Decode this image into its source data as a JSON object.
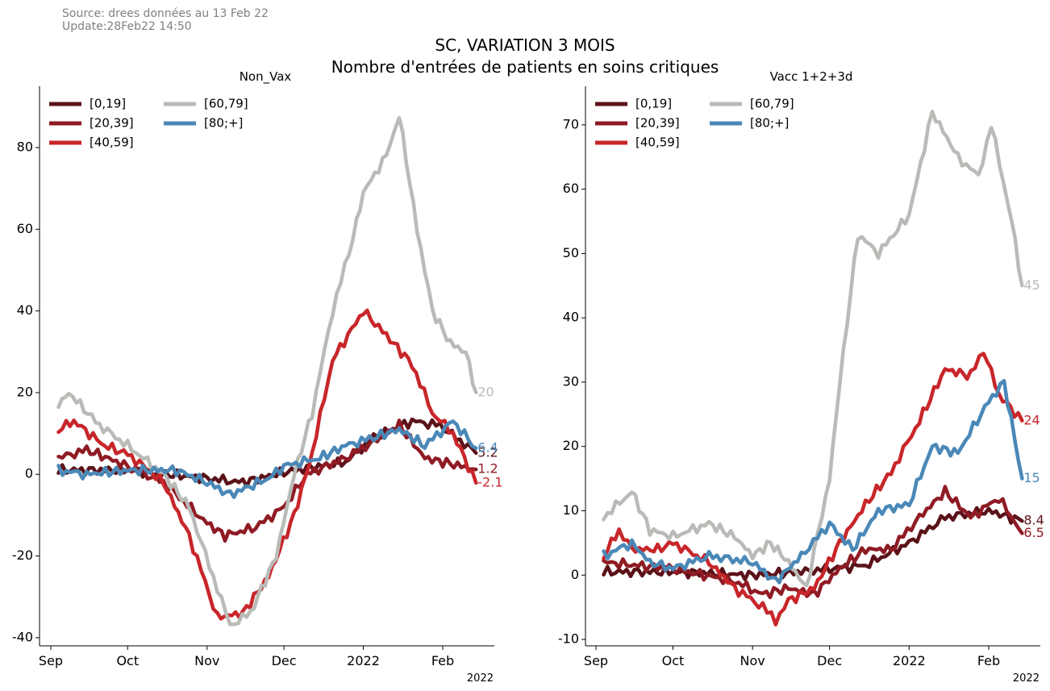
{
  "header": {
    "source": "Source: drees données au 13 Feb 22",
    "update": "Update:28Feb22 14:50",
    "title_line1": "SC, VARIATION 3 MOIS",
    "title_line2": "Nombre d'entrées de patients en soins critiques"
  },
  "colors": {
    "[0,19]": "#5b1219",
    "[20,39]": "#8f1b24",
    "[40,59]": "#c8262a",
    "[60,79]": "#b9bbb7",
    "[80;+]": "#4a88b7"
  },
  "chart_data": [
    {
      "type": "line",
      "title": "Non_Vax",
      "x_ticks": [
        "Sep",
        "Oct",
        "Nov",
        "Dec",
        "2022",
        "Feb"
      ],
      "x_offset_label": "2022",
      "ylim": [
        -42,
        95
      ],
      "y_ticks": [
        -40,
        -20,
        0,
        20,
        40,
        60,
        80
      ],
      "legend_loc": "upper-left",
      "legend_cols": 2,
      "series": [
        {
          "name": "[0,19]",
          "points": [
            [
              "2021-09-04",
              1
            ],
            [
              "2021-10-01",
              1
            ],
            [
              "2021-11-01",
              -1
            ],
            [
              "2021-11-15",
              -2
            ],
            [
              "2021-12-01",
              0.5
            ],
            [
              "2021-12-25",
              3
            ],
            [
              "2022-01-05",
              9
            ],
            [
              "2022-01-20",
              13
            ],
            [
              "2022-01-31",
              12
            ],
            [
              "2022-02-14",
              5.2
            ]
          ],
          "end_label": "5.2"
        },
        {
          "name": "[20,39]",
          "points": [
            [
              "2021-09-04",
              4
            ],
            [
              "2021-09-15",
              6
            ],
            [
              "2021-10-01",
              2
            ],
            [
              "2021-10-15",
              -2
            ],
            [
              "2021-11-01",
              -12
            ],
            [
              "2021-11-08",
              -15
            ],
            [
              "2021-11-20",
              -13
            ],
            [
              "2021-12-01",
              -8
            ],
            [
              "2021-12-10",
              0
            ],
            [
              "2021-12-25",
              4
            ],
            [
              "2022-01-05",
              8
            ],
            [
              "2022-01-15",
              12
            ],
            [
              "2022-01-25",
              4
            ],
            [
              "2022-02-01",
              3
            ],
            [
              "2022-02-14",
              1.2
            ]
          ],
          "end_label": "1.2"
        },
        {
          "name": "[40,59]",
          "points": [
            [
              "2021-09-04",
              11
            ],
            [
              "2021-09-10",
              13
            ],
            [
              "2021-09-22",
              7
            ],
            [
              "2021-10-01",
              5
            ],
            [
              "2021-10-15",
              -2
            ],
            [
              "2021-10-25",
              -15
            ],
            [
              "2021-11-05",
              -35
            ],
            [
              "2021-11-15",
              -34
            ],
            [
              "2021-11-25",
              -25
            ],
            [
              "2021-12-05",
              -10
            ],
            [
              "2021-12-12",
              5
            ],
            [
              "2021-12-20",
              28
            ],
            [
              "2022-01-01",
              40
            ],
            [
              "2022-01-10",
              34
            ],
            [
              "2022-01-20",
              27
            ],
            [
              "2022-01-28",
              15
            ],
            [
              "2022-02-05",
              10
            ],
            [
              "2022-02-14",
              -2.1
            ]
          ],
          "end_label": "-2.1"
        },
        {
          "name": "[60,79]",
          "points": [
            [
              "2021-09-04",
              17
            ],
            [
              "2021-09-08",
              20
            ],
            [
              "2021-09-20",
              12
            ],
            [
              "2021-10-01",
              7
            ],
            [
              "2021-10-15",
              0
            ],
            [
              "2021-10-25",
              -8
            ],
            [
              "2021-11-05",
              -28
            ],
            [
              "2021-11-10",
              -37
            ],
            [
              "2021-11-18",
              -34
            ],
            [
              "2021-11-28",
              -20
            ],
            [
              "2021-12-05",
              0
            ],
            [
              "2021-12-12",
              15
            ],
            [
              "2021-12-20",
              40
            ],
            [
              "2021-12-28",
              58
            ],
            [
              "2022-01-01",
              69
            ],
            [
              "2022-01-10",
              78
            ],
            [
              "2022-01-15",
              88
            ],
            [
              "2022-01-22",
              60
            ],
            [
              "2022-01-28",
              40
            ],
            [
              "2022-02-04",
              32
            ],
            [
              "2022-02-10",
              30
            ],
            [
              "2022-02-14",
              20
            ]
          ],
          "end_label": "20"
        },
        {
          "name": "[80;+]",
          "points": [
            [
              "2021-09-04",
              1
            ],
            [
              "2021-09-15",
              0
            ],
            [
              "2021-10-01",
              1
            ],
            [
              "2021-10-20",
              1
            ],
            [
              "2021-11-01",
              -2
            ],
            [
              "2021-11-10",
              -5
            ],
            [
              "2021-11-25",
              -1
            ],
            [
              "2021-12-01",
              2
            ],
            [
              "2021-12-15",
              4
            ],
            [
              "2021-12-25",
              7
            ],
            [
              "2022-01-05",
              9
            ],
            [
              "2022-01-15",
              11
            ],
            [
              "2022-01-25",
              7
            ],
            [
              "2022-02-05",
              13
            ],
            [
              "2022-02-14",
              6.4
            ]
          ],
          "end_label": "6.4"
        }
      ]
    },
    {
      "type": "line",
      "title": "Vacc 1+2+3d",
      "x_ticks": [
        "Sep",
        "Oct",
        "Nov",
        "Dec",
        "2022",
        "Feb"
      ],
      "x_offset_label": "2022",
      "ylim": [
        -11,
        76
      ],
      "y_ticks": [
        -10,
        0,
        10,
        20,
        30,
        40,
        50,
        60,
        70
      ],
      "legend_loc": "upper-left",
      "legend_cols": 2,
      "series": [
        {
          "name": "[0,19]",
          "points": [
            [
              "2021-09-04",
              0.5
            ],
            [
              "2021-10-01",
              0.5
            ],
            [
              "2021-11-01",
              0
            ],
            [
              "2021-11-20",
              0.5
            ],
            [
              "2021-12-01",
              1
            ],
            [
              "2021-12-15",
              1.5
            ],
            [
              "2022-01-01",
              5
            ],
            [
              "2022-01-15",
              9
            ],
            [
              "2022-02-01",
              10
            ],
            [
              "2022-02-14",
              8.4
            ]
          ],
          "end_label": "8.4"
        },
        {
          "name": "[20,39]",
          "points": [
            [
              "2021-09-04",
              2
            ],
            [
              "2021-10-01",
              1
            ],
            [
              "2021-10-25",
              -1
            ],
            [
              "2021-11-05",
              -3
            ],
            [
              "2021-11-15",
              -2
            ],
            [
              "2021-11-25",
              -3
            ],
            [
              "2021-12-05",
              1
            ],
            [
              "2021-12-15",
              4
            ],
            [
              "2021-12-25",
              4
            ],
            [
              "2022-01-05",
              9
            ],
            [
              "2022-01-15",
              13
            ],
            [
              "2022-01-25",
              9
            ],
            [
              "2022-02-05",
              12
            ],
            [
              "2022-02-14",
              6.5
            ]
          ],
          "end_label": "6.5"
        },
        {
          "name": "[40,59]",
          "points": [
            [
              "2021-09-04",
              3
            ],
            [
              "2021-09-10",
              7
            ],
            [
              "2021-09-15",
              4
            ],
            [
              "2021-09-25",
              4
            ],
            [
              "2021-10-01",
              5
            ],
            [
              "2021-10-15",
              2
            ],
            [
              "2021-10-25",
              -2
            ],
            [
              "2021-11-05",
              -5
            ],
            [
              "2021-11-10",
              -7
            ],
            [
              "2021-11-15",
              -4
            ],
            [
              "2021-11-25",
              -2
            ],
            [
              "2021-12-05",
              5
            ],
            [
              "2021-12-15",
              11
            ],
            [
              "2021-12-25",
              16
            ],
            [
              "2022-01-05",
              24
            ],
            [
              "2022-01-15",
              32
            ],
            [
              "2022-01-25",
              31
            ],
            [
              "2022-01-30",
              35
            ],
            [
              "2022-02-05",
              28
            ],
            [
              "2022-02-14",
              24
            ]
          ],
          "end_label": "24"
        },
        {
          "name": "[60,79]",
          "points": [
            [
              "2021-09-04",
              9
            ],
            [
              "2021-09-15",
              13
            ],
            [
              "2021-09-22",
              7
            ],
            [
              "2021-10-01",
              6
            ],
            [
              "2021-10-15",
              8
            ],
            [
              "2021-10-25",
              6
            ],
            [
              "2021-11-01",
              3
            ],
            [
              "2021-11-08",
              5
            ],
            [
              "2021-11-15",
              2
            ],
            [
              "2021-11-22",
              -2
            ],
            [
              "2021-12-01",
              15
            ],
            [
              "2021-12-05",
              30
            ],
            [
              "2021-12-12",
              53
            ],
            [
              "2021-12-20",
              50
            ],
            [
              "2022-01-01",
              56
            ],
            [
              "2022-01-10",
              72
            ],
            [
              "2022-01-20",
              65
            ],
            [
              "2022-01-28",
              62
            ],
            [
              "2022-02-02",
              70
            ],
            [
              "2022-02-10",
              55
            ],
            [
              "2022-02-14",
              45
            ]
          ],
          "end_label": "45"
        },
        {
          "name": "[80;+]",
          "points": [
            [
              "2021-09-04",
              3
            ],
            [
              "2021-09-15",
              5
            ],
            [
              "2021-09-22",
              2
            ],
            [
              "2021-10-01",
              1
            ],
            [
              "2021-10-15",
              3
            ],
            [
              "2021-11-01",
              2
            ],
            [
              "2021-11-10",
              -1
            ],
            [
              "2021-11-20",
              3
            ],
            [
              "2021-12-01",
              8
            ],
            [
              "2021-12-10",
              4
            ],
            [
              "2021-12-20",
              10
            ],
            [
              "2022-01-01",
              11
            ],
            [
              "2022-01-10",
              20
            ],
            [
              "2022-01-20",
              19
            ],
            [
              "2022-02-01",
              27
            ],
            [
              "2022-02-07",
              30
            ],
            [
              "2022-02-14",
              15
            ]
          ],
          "end_label": "15"
        }
      ]
    }
  ]
}
